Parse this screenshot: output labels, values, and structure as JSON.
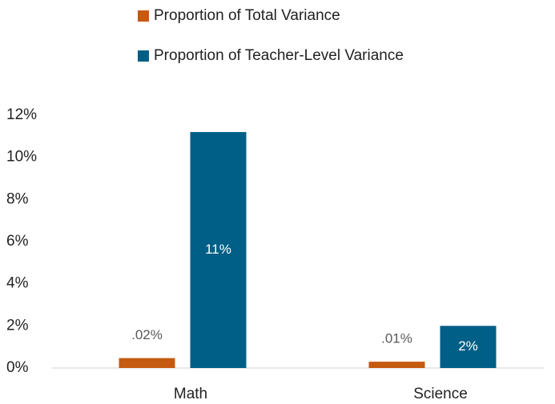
{
  "chart_data": {
    "type": "bar",
    "categories": [
      "Math",
      "Science"
    ],
    "series": [
      {
        "name": "Proportion of Total Variance",
        "color": "#c55a11",
        "values": [
          0.47,
          0.3
        ]
      },
      {
        "name": "Proportion of Teacher-Level Variance",
        "color": "#005f86",
        "values": [
          11.2,
          2.0
        ],
        "value_labels": [
          "11%",
          "2%"
        ]
      }
    ],
    "annotations": [
      ".02%",
      ".01%"
    ],
    "ylim": [
      0,
      12
    ],
    "yticks": [
      {
        "value": 0,
        "label": "0%"
      },
      {
        "value": 2,
        "label": "2%"
      },
      {
        "value": 4,
        "label": "4%"
      },
      {
        "value": 6,
        "label": "6%"
      },
      {
        "value": 8,
        "label": "8%"
      },
      {
        "value": 10,
        "label": "10%"
      },
      {
        "value": 12,
        "label": "12%"
      }
    ],
    "grid": false,
    "legend": "top"
  }
}
